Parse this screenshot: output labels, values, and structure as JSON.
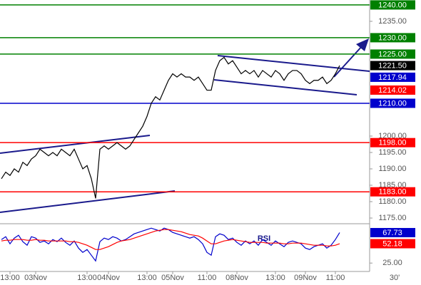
{
  "chart_data": [
    {
      "type": "line",
      "ylim": [
        1173.7,
        1241.5
      ],
      "yticks": [
        {
          "value": 1175,
          "label": "1175.00"
        },
        {
          "value": 1180,
          "label": "1180.00"
        },
        {
          "value": 1185,
          "label": "1185.00"
        },
        {
          "value": 1190,
          "label": "1190.00"
        },
        {
          "value": 1195,
          "label": "1195.00"
        },
        {
          "value": 1200,
          "label": "1200.00"
        },
        {
          "value": 1235,
          "label": "1235.00"
        }
      ],
      "xticks": [
        {
          "value": 2,
          "label": "13:00"
        },
        {
          "value": 8,
          "label": "03Nov"
        },
        {
          "value": 20,
          "label": "13:00"
        },
        {
          "value": 25,
          "label": "04Nov"
        },
        {
          "value": 34,
          "label": "13:00"
        },
        {
          "value": 40,
          "label": "05Nov"
        },
        {
          "value": 48,
          "label": "11:00"
        },
        {
          "value": 55,
          "label": "08Nov"
        },
        {
          "value": 64,
          "label": "13:00"
        },
        {
          "value": 71,
          "label": "09Nov"
        },
        {
          "value": 78,
          "label": "11:00"
        }
      ],
      "timeframe": "30'",
      "series": [
        {
          "color": "#000000",
          "values": [
            1187,
            1189,
            1188,
            1190,
            1189,
            1192,
            1191,
            1193,
            1194,
            1196,
            1195,
            1194,
            1195,
            1194,
            1196,
            1195,
            1194,
            1196,
            1193,
            1190,
            1191,
            1187,
            1181,
            1196,
            1197,
            1196,
            1197,
            1198,
            1197,
            1196,
            1197,
            1199,
            1201,
            1203,
            1206,
            1210,
            1212,
            1211,
            1214,
            1217,
            1219,
            1218,
            1219,
            1218,
            1218,
            1217,
            1218,
            1216,
            1214,
            1214,
            1220,
            1223,
            1224,
            1222,
            1223,
            1221,
            1219,
            1220,
            1219,
            1220,
            1218,
            1220,
            1219,
            1218,
            1220,
            1219,
            1217,
            1219,
            1220,
            1220,
            1219,
            1217,
            1216,
            1217,
            1217,
            1218,
            1216,
            1217,
            1219,
            1221.5
          ]
        }
      ],
      "levels": [
        {
          "value": 1240,
          "label": "1240.00",
          "color": "#008000"
        },
        {
          "value": 1230,
          "label": "1230.00",
          "color": "#008000"
        },
        {
          "value": 1225,
          "label": "1225.00",
          "color": "#008000"
        },
        {
          "value": 1210,
          "label": "1210.00",
          "color": "#0000cc"
        },
        {
          "value": 1198,
          "label": "1198.00",
          "color": "#ff0000"
        },
        {
          "value": 1183,
          "label": "1183.00",
          "color": "#ff0000"
        }
      ],
      "markers": [
        {
          "value": 1221.5,
          "label": "1221.50",
          "color": "#000000"
        },
        {
          "value": 1217.94,
          "label": "1217.94",
          "color": "#0000cc"
        },
        {
          "value": 1214.02,
          "label": "1214.02",
          "color": "#ff0000"
        }
      ]
    },
    {
      "type": "line",
      "title": "RSI",
      "ylim": [
        14.2,
        78.2
      ],
      "yticks": [
        {
          "value": 25,
          "label": "25.00"
        }
      ],
      "series": [
        {
          "color": "#0000cc",
          "values": [
            58,
            62,
            52,
            60,
            64,
            55,
            50,
            62,
            60,
            54,
            56,
            52,
            58,
            55,
            60,
            54,
            50,
            56,
            46,
            40,
            44,
            36,
            28,
            55,
            60,
            58,
            62,
            60,
            56,
            58,
            62,
            66,
            68,
            70,
            72,
            74,
            72,
            70,
            74,
            72,
            68,
            66,
            64,
            62,
            60,
            62,
            58,
            52,
            40,
            36,
            62,
            66,
            64,
            58,
            60,
            54,
            50,
            56,
            52,
            56,
            50,
            58,
            54,
            50,
            56,
            52,
            48,
            54,
            56,
            54,
            52,
            46,
            44,
            48,
            50,
            52,
            46,
            50,
            58,
            67.73
          ]
        },
        {
          "color": "#ff0000",
          "values": [
            56,
            57,
            57,
            58,
            58,
            58,
            57,
            57,
            58,
            57,
            57,
            56,
            56,
            56,
            56,
            56,
            55,
            55,
            54,
            52,
            50,
            47,
            44,
            44,
            46,
            48,
            51,
            54,
            56,
            57,
            58,
            60,
            62,
            64,
            66,
            68,
            70,
            71,
            72,
            72,
            71,
            70,
            69,
            67,
            65,
            64,
            63,
            60,
            56,
            52,
            52,
            54,
            56,
            57,
            58,
            57,
            56,
            55,
            54,
            54,
            54,
            54,
            53,
            53,
            53,
            53,
            52,
            52,
            53,
            53,
            53,
            52,
            51,
            50,
            50,
            50,
            49,
            49,
            50,
            52.18
          ]
        }
      ],
      "markers": [
        {
          "value": 67.73,
          "label": "67.73",
          "color": "#0000cc"
        },
        {
          "value": 52.18,
          "label": "52.18",
          "color": "#ff0000"
        }
      ]
    }
  ]
}
